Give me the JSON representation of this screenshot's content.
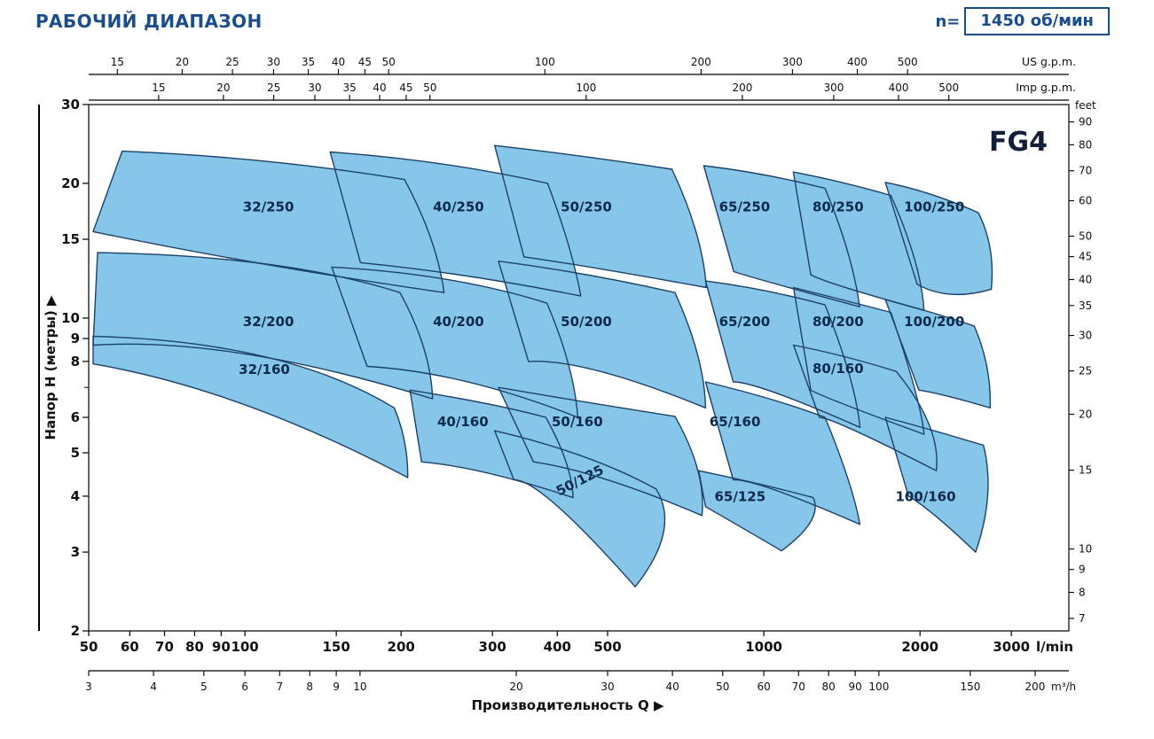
{
  "header": {
    "title": "РАБОЧИЙ ДИАПАЗОН",
    "speed_prefix": "n=",
    "speed_value": "1450 об/мин"
  },
  "colors": {
    "accent": "#1a4d8c",
    "envelope_fill": "#85c6e9",
    "envelope_stroke": "#1d4168",
    "label_text": "#0d2a4d",
    "family_text": "#121f36",
    "axis_text": "#111111"
  },
  "chart_data": {
    "type": "area",
    "title": "РАБОЧИЙ ДИАПАЗОН",
    "family_label": "FG4",
    "speed": "1450 об/мин",
    "scale": "log-log",
    "xlabel": "Производительность Q",
    "x_axis_lmin": {
      "label": "l/min",
      "range": [
        50,
        3870
      ],
      "ticks": [
        50,
        60,
        70,
        80,
        90,
        100,
        150,
        200,
        300,
        400,
        500,
        1000,
        2000,
        3000
      ]
    },
    "x_axis_m3h": {
      "label": "m³/h",
      "lmin_per_unit": 16.667,
      "ticks": [
        3,
        4,
        5,
        6,
        7,
        8,
        9,
        10,
        20,
        30,
        40,
        50,
        60,
        70,
        80,
        90,
        100,
        150,
        200
      ]
    },
    "x_axis_usgpm": {
      "label": "US g.p.m.",
      "lmin_per_unit": 3.785,
      "ticks": [
        15,
        20,
        25,
        30,
        35,
        40,
        45,
        50,
        100,
        200,
        300,
        400,
        500
      ]
    },
    "x_axis_impgpm": {
      "label": "Imp g.p.m.",
      "lmin_per_unit": 4.546,
      "ticks": [
        15,
        20,
        25,
        30,
        35,
        40,
        45,
        50,
        100,
        200,
        300,
        400,
        500
      ]
    },
    "y_axis_m": {
      "label": "Напор H (метры)",
      "range": [
        2,
        30
      ],
      "ticks": [
        30,
        20,
        15,
        10,
        9,
        8,
        6,
        5,
        4,
        3,
        2
      ],
      "unlabeled_ticks": [
        7
      ]
    },
    "y_axis_feet": {
      "label": "feet",
      "m_per_unit": 0.3048,
      "ticks": [
        90,
        80,
        70,
        60,
        50,
        45,
        40,
        35,
        30,
        25,
        20,
        15,
        10,
        9,
        8,
        7
      ]
    },
    "envelopes": [
      {
        "name": "32/250",
        "label_at": [
          111,
          17.3
        ],
        "points": [
          [
            58,
            23.6
          ],
          [
            110,
            22.4
          ],
          [
            203,
            20.4
          ],
          [
            228,
            15.1
          ],
          [
            242,
            11.4
          ],
          [
            109,
            13.2
          ],
          [
            51,
            15.6
          ]
        ]
      },
      {
        "name": "40/250",
        "label_at": [
          258,
          17.3
        ],
        "points": [
          [
            146,
            23.5
          ],
          [
            240,
            22.1
          ],
          [
            383,
            20.0
          ],
          [
            420,
            14.6
          ],
          [
            444,
            11.2
          ],
          [
            270,
            12.4
          ],
          [
            167,
            13.3
          ]
        ]
      },
      {
        "name": "50/250",
        "label_at": [
          455,
          17.3
        ],
        "points": [
          [
            303,
            24.3
          ],
          [
            445,
            23.0
          ],
          [
            665,
            21.5
          ],
          [
            740,
            15.6
          ],
          [
            775,
            11.7
          ],
          [
            480,
            12.9
          ],
          [
            345,
            13.7
          ]
        ]
      },
      {
        "name": "65/250",
        "label_at": [
          918,
          17.3
        ],
        "points": [
          [
            766,
            21.9
          ],
          [
            1000,
            20.9
          ],
          [
            1312,
            19.5
          ],
          [
            1450,
            14.1
          ],
          [
            1530,
            10.6
          ],
          [
            1060,
            11.9
          ],
          [
            875,
            12.7
          ]
        ]
      },
      {
        "name": "80/250",
        "label_at": [
          1390,
          17.3
        ],
        "points": [
          [
            1140,
            21.2
          ],
          [
            1410,
            20.1
          ],
          [
            1757,
            18.8
          ],
          [
            1950,
            13.6
          ],
          [
            2036,
            10.4
          ],
          [
            1437,
            11.7
          ],
          [
            1232,
            12.5
          ]
        ]
      },
      {
        "name": "100/250",
        "label_at": [
          2130,
          17.3
        ],
        "points": [
          [
            1715,
            20.1
          ],
          [
            2100,
            18.9
          ],
          [
            2590,
            17.2
          ],
          [
            2730,
            14.3
          ],
          [
            2745,
            11.6
          ],
          [
            2300,
            11.3
          ],
          [
            1975,
            11.9
          ]
        ]
      },
      {
        "name": "32/200",
        "label_at": [
          111,
          9.6
        ],
        "points": [
          [
            52,
            14.0
          ],
          [
            110,
            13.2
          ],
          [
            199,
            11.4
          ],
          [
            221,
            8.6
          ],
          [
            230,
            6.6
          ],
          [
            101,
            8.3
          ],
          [
            51,
            8.7
          ]
        ]
      },
      {
        "name": "40/200",
        "label_at": [
          258,
          9.6
        ],
        "points": [
          [
            147,
            13.0
          ],
          [
            245,
            12.2
          ],
          [
            382,
            10.8
          ],
          [
            420,
            7.9
          ],
          [
            438,
            6.0
          ],
          [
            269,
            7.2
          ],
          [
            172,
            7.8
          ]
        ]
      },
      {
        "name": "50/200",
        "label_at": [
          455,
          9.6
        ],
        "points": [
          [
            308,
            13.4
          ],
          [
            455,
            12.5
          ],
          [
            674,
            11.4
          ],
          [
            745,
            8.3
          ],
          [
            772,
            6.3
          ],
          [
            484,
            7.6
          ],
          [
            352,
            8.0
          ]
        ]
      },
      {
        "name": "65/200",
        "label_at": [
          918,
          9.6
        ],
        "points": [
          [
            772,
            12.1
          ],
          [
            1010,
            11.5
          ],
          [
            1312,
            10.7
          ],
          [
            1460,
            7.5
          ],
          [
            1532,
            5.7
          ],
          [
            1056,
            6.8
          ],
          [
            873,
            7.2
          ]
        ]
      },
      {
        "name": "80/200",
        "label_at": [
          1390,
          9.6
        ],
        "points": [
          [
            1141,
            11.7
          ],
          [
            1410,
            11.0
          ],
          [
            1757,
            10.3
          ],
          [
            1950,
            7.0
          ],
          [
            2036,
            5.5
          ],
          [
            1437,
            6.4
          ],
          [
            1232,
            6.9
          ]
        ]
      },
      {
        "name": "100/200",
        "label_at": [
          2130,
          9.6
        ],
        "points": [
          [
            1715,
            11.0
          ],
          [
            2100,
            10.3
          ],
          [
            2544,
            9.6
          ],
          [
            2690,
            7.8
          ],
          [
            2730,
            6.3
          ],
          [
            2250,
            6.7
          ],
          [
            1990,
            6.9
          ]
        ]
      },
      {
        "name": "32/160",
        "label_at": [
          109,
          7.5
        ],
        "points": [
          [
            51,
            9.1
          ],
          [
            109,
            8.2
          ],
          [
            194,
            6.3
          ],
          [
            203,
            5.3
          ],
          [
            206,
            4.4
          ],
          [
            100,
            6.4
          ],
          [
            51,
            7.9
          ]
        ]
      },
      {
        "name": "40/160",
        "label_at": [
          263,
          5.73
        ],
        "points": [
          [
            208,
            6.9
          ],
          [
            290,
            6.45
          ],
          [
            380,
            6.0
          ],
          [
            415,
            4.8
          ],
          [
            429,
            3.97
          ],
          [
            295,
            4.5
          ],
          [
            219,
            4.77
          ]
        ]
      },
      {
        "name": "50/160",
        "label_at": [
          437,
          5.73
        ],
        "points": [
          [
            308,
            7.0
          ],
          [
            450,
            6.5
          ],
          [
            674,
            6.03
          ],
          [
            745,
            4.6
          ],
          [
            760,
            3.62
          ],
          [
            500,
            4.35
          ],
          [
            360,
            4.77
          ]
        ]
      },
      {
        "name": "65/160",
        "label_at": [
          880,
          5.73
        ],
        "points": [
          [
            772,
            7.2
          ],
          [
            1025,
            6.6
          ],
          [
            1312,
            6.0
          ],
          [
            1450,
            4.4
          ],
          [
            1532,
            3.46
          ],
          [
            1056,
            4.12
          ],
          [
            873,
            4.35
          ]
        ]
      },
      {
        "name": "80/160",
        "label_at": [
          1390,
          7.53
        ],
        "points": [
          [
            1141,
            8.7
          ],
          [
            1430,
            8.2
          ],
          [
            1800,
            7.6
          ],
          [
            2080,
            5.8
          ],
          [
            2150,
            4.56
          ],
          [
            1500,
            5.6
          ],
          [
            1280,
            6.0
          ]
        ]
      },
      {
        "name": "100/160",
        "label_at": [
          2050,
          3.9
        ],
        "points": [
          [
            1715,
            6.0
          ],
          [
            2130,
            5.6
          ],
          [
            2650,
            5.2
          ],
          [
            2700,
            4.0
          ],
          [
            2560,
            3.0
          ],
          [
            2150,
            3.6
          ],
          [
            1900,
            4.0
          ]
        ]
      },
      {
        "name": "50/125",
        "label_at": [
          446,
          4.25
        ],
        "label_rotation": -27,
        "points": [
          [
            303,
            5.6
          ],
          [
            450,
            4.9
          ],
          [
            620,
            4.15
          ],
          [
            640,
            3.3
          ],
          [
            565,
            2.51
          ],
          [
            400,
            3.8
          ],
          [
            330,
            4.35
          ]
        ]
      },
      {
        "name": "65/125",
        "label_at": [
          900,
          3.9
        ],
        "points": [
          [
            749,
            4.56
          ],
          [
            986,
            4.25
          ],
          [
            1245,
            3.97
          ],
          [
            1230,
            3.5
          ],
          [
            1082,
            3.02
          ],
          [
            900,
            3.42
          ],
          [
            772,
            3.79
          ]
        ]
      }
    ]
  }
}
